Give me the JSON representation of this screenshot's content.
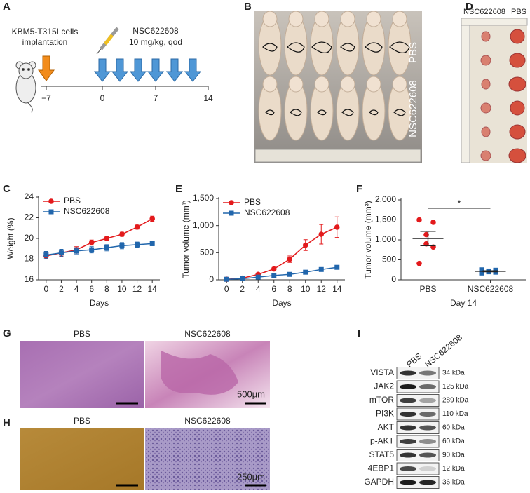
{
  "panels": {
    "a": "A",
    "b": "B",
    "c": "C",
    "d": "D",
    "e": "E",
    "f": "F",
    "g": "G",
    "h": "H",
    "i": "I"
  },
  "timeline": {
    "cell_label": [
      "KBM5-T315I cells",
      "implantation"
    ],
    "drug": "NSC622608",
    "dose": "10 mg/kg, qod",
    "ticks": [
      "−7",
      "0",
      "7",
      "14"
    ]
  },
  "photo_b": {
    "top": "PBS",
    "bottom": "NSC622608"
  },
  "photo_d": {
    "left": "NSC622608",
    "right": "PBS"
  },
  "chart_data": [
    {
      "type": "line",
      "ylabel": "Weight (%)",
      "xlabel": "Days",
      "x": [
        0,
        2,
        4,
        6,
        8,
        10,
        12,
        14
      ],
      "xlim": [
        -1,
        15
      ],
      "xticks": [
        0,
        2,
        4,
        6,
        8,
        10,
        12,
        14
      ],
      "ylim": [
        16,
        24
      ],
      "yticks": [
        16,
        18,
        20,
        22,
        24
      ],
      "legend": "upper left",
      "series": [
        {
          "name": "PBS",
          "color": "#e31a1c",
          "marker": "circle",
          "values": [
            18.3,
            18.6,
            18.9,
            19.6,
            20.0,
            20.4,
            21.1,
            21.9
          ],
          "errors": [
            0.3,
            0.3,
            0.3,
            0.25,
            0.2,
            0.2,
            0.2,
            0.25
          ]
        },
        {
          "name": "NSC622608",
          "color": "#2166ac",
          "marker": "square",
          "values": [
            18.4,
            18.6,
            18.8,
            18.9,
            19.1,
            19.3,
            19.4,
            19.5
          ],
          "errors": [
            0.35,
            0.35,
            0.3,
            0.3,
            0.3,
            0.3,
            0.25,
            0.2
          ]
        }
      ]
    },
    {
      "type": "line",
      "ylabel": "Tumor volume (mm³)",
      "xlabel": "Days",
      "x": [
        0,
        2,
        4,
        6,
        8,
        10,
        12,
        14
      ],
      "xlim": [
        -1,
        15
      ],
      "xticks": [
        0,
        2,
        4,
        6,
        8,
        10,
        12,
        14
      ],
      "ylim": [
        0,
        1500
      ],
      "yticks": [
        0,
        500,
        {
          "value": 1000,
          "label": "1,000"
        },
        {
          "value": 1500,
          "label": "1,500"
        }
      ],
      "legend": "upper left",
      "series": [
        {
          "name": "PBS",
          "color": "#e31a1c",
          "marker": "circle",
          "values": [
            10,
            30,
            100,
            200,
            380,
            640,
            840,
            970
          ],
          "errors": [
            5,
            10,
            20,
            30,
            60,
            100,
            180,
            190
          ]
        },
        {
          "name": "NSC622608",
          "color": "#2166ac",
          "marker": "square",
          "values": [
            10,
            20,
            50,
            80,
            100,
            140,
            190,
            230
          ],
          "errors": [
            5,
            5,
            8,
            10,
            10,
            12,
            15,
            15
          ]
        }
      ]
    },
    {
      "type": "dot",
      "ylabel": "Tumor volume (mm³)",
      "xlabel": "Day 14",
      "categories": [
        "PBS",
        "NSC622608"
      ],
      "colors": [
        "#e31a1c",
        "#2166ac"
      ],
      "points": [
        [
          1500,
          1440,
          1130,
          900,
          820,
          410
        ],
        [
          250,
          240,
          220,
          200,
          190,
          170
        ]
      ],
      "means": [
        1033,
        212
      ],
      "sems": [
        180,
        13
      ],
      "ylim": [
        0,
        2000
      ],
      "yticks": [
        0,
        500,
        {
          "value": 1000,
          "label": "1,000"
        },
        {
          "value": 1500,
          "label": "1,500"
        },
        {
          "value": 2000,
          "label": "2,000"
        }
      ],
      "annotation": "*"
    }
  ],
  "histology": {
    "g": {
      "left": "PBS",
      "right": "NSC622608",
      "scale": "500μm"
    },
    "h": {
      "left": "PBS",
      "right": "NSC622608",
      "scale": "250μm"
    }
  },
  "western_blot": {
    "lanes": [
      "PBS",
      "NSC622608"
    ],
    "rows": [
      [
        "VISTA",
        "34 kDa"
      ],
      [
        "JAK2",
        "125 kDa"
      ],
      [
        "mTOR",
        "289 kDa"
      ],
      [
        "PI3K",
        "110 kDa"
      ],
      [
        "AKT",
        "60 kDa"
      ],
      [
        "p-AKT",
        "60 kDa"
      ],
      [
        "STAT5",
        "90 kDa"
      ],
      [
        "4EBP1",
        "12 kDa"
      ],
      [
        "GAPDH",
        "36 kDa"
      ]
    ]
  }
}
